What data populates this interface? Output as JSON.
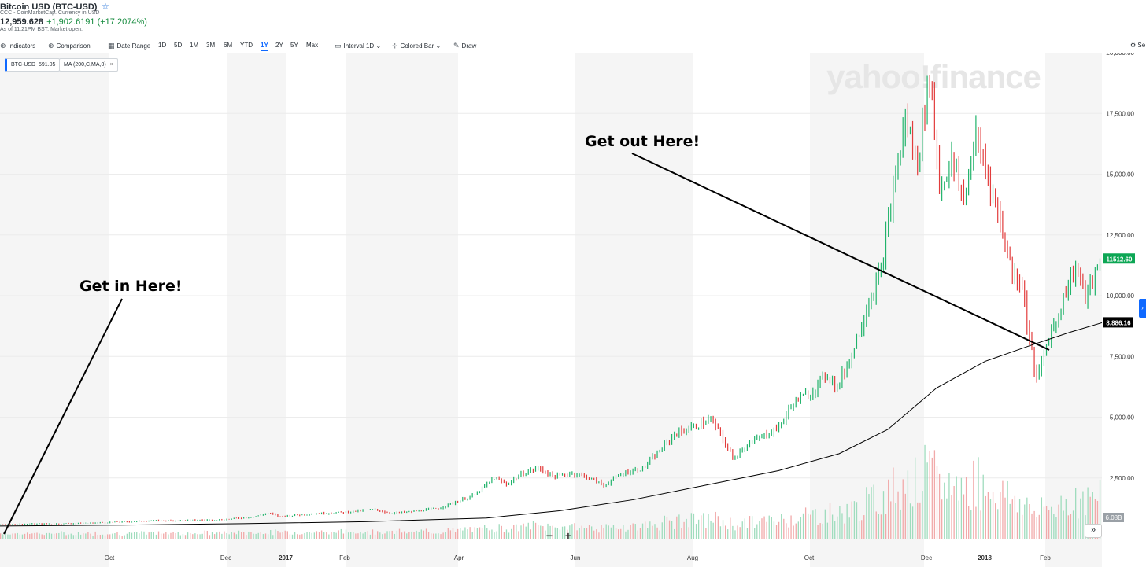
{
  "header": {
    "title": "Bitcoin USD (BTC-USD)",
    "source": "CCC - CoinMarketCap. Currency in USD",
    "price": "12,959.628",
    "change": "+1,902.6191 (+17.2074%)",
    "as_of": "As of 11:21PM BST. Market open."
  },
  "toolbar": {
    "indicators": "Indicators",
    "comparison": "Comparison",
    "date_range": "Date Range",
    "ranges": [
      "1D",
      "5D",
      "1M",
      "3M",
      "6M",
      "YTD",
      "1Y",
      "2Y",
      "5Y",
      "Max"
    ],
    "active_range": "1Y",
    "interval_label": "Interval",
    "interval_value": "1D",
    "chart_type": "Colored Bar",
    "draw": "Draw",
    "settings": "Se"
  },
  "chips": {
    "symbol": "BTC-USD",
    "symbol_value": "591.05",
    "ma": "MA (200,C,MA,0)"
  },
  "watermark": "yahoo!finance",
  "colors": {
    "up": "#21b36b",
    "down": "#e23c3c",
    "ma": "#000000",
    "accent": "#0f69ff",
    "grid": "#f3f3f3"
  },
  "chart_data": {
    "type": "line",
    "x_ticks": [
      "Oct",
      "Dec",
      "2017",
      "Feb",
      "Apr",
      "Jun",
      "Aug",
      "Oct",
      "Dec",
      "2018",
      "Feb"
    ],
    "y_ticks": [
      "2,500.00",
      "5,000.00",
      "7,500.00",
      "10,000.00",
      "12,500.00",
      "15,000.00",
      "17,500.00",
      "20,000.00"
    ],
    "ylim": [
      0,
      20000
    ],
    "price_series": {
      "name": "BTC-USD",
      "points": [
        [
          0,
          591
        ],
        [
          13,
          605
        ],
        [
          26,
          620
        ],
        [
          39,
          650
        ],
        [
          52,
          700
        ],
        [
          65,
          740
        ],
        [
          78,
          760
        ],
        [
          91,
          780
        ],
        [
          104,
          900
        ],
        [
          110,
          1050
        ],
        [
          115,
          920
        ],
        [
          128,
          1020
        ],
        [
          141,
          1090
        ],
        [
          154,
          1200
        ],
        [
          160,
          1050
        ],
        [
          168,
          1100
        ],
        [
          180,
          1250
        ],
        [
          195,
          1800
        ],
        [
          203,
          2500
        ],
        [
          208,
          2250
        ],
        [
          215,
          2700
        ],
        [
          221,
          2900
        ],
        [
          228,
          2550
        ],
        [
          235,
          2700
        ],
        [
          241,
          2550
        ],
        [
          248,
          2200
        ],
        [
          256,
          2700
        ],
        [
          264,
          2900
        ],
        [
          271,
          3600
        ],
        [
          277,
          4300
        ],
        [
          285,
          4600
        ],
        [
          292,
          4900
        ],
        [
          296,
          4300
        ],
        [
          301,
          3300
        ],
        [
          306,
          3800
        ],
        [
          313,
          4200
        ],
        [
          320,
          4600
        ],
        [
          326,
          5600
        ],
        [
          333,
          6000
        ],
        [
          340,
          6800
        ],
        [
          344,
          6200
        ],
        [
          350,
          7600
        ],
        [
          356,
          9500
        ],
        [
          362,
          11000
        ],
        [
          368,
          15000
        ],
        [
          372,
          17200
        ],
        [
          377,
          15500
        ],
        [
          382,
          19200
        ],
        [
          386,
          14500
        ],
        [
          391,
          15500
        ],
        [
          396,
          14000
        ],
        [
          401,
          16500
        ],
        [
          406,
          15000
        ],
        [
          411,
          13000
        ],
        [
          416,
          11000
        ],
        [
          420,
          10500
        ],
        [
          423,
          8200
        ],
        [
          426,
          6500
        ],
        [
          430,
          8000
        ],
        [
          434,
          9000
        ],
        [
          438,
          10200
        ],
        [
          442,
          11200
        ],
        [
          446,
          10000
        ],
        [
          450,
          10800
        ],
        [
          453,
          11512
        ]
      ]
    },
    "ma_series": {
      "name": "MA (200,C,MA,0)",
      "points": [
        [
          0,
          520
        ],
        [
          50,
          560
        ],
        [
          100,
          620
        ],
        [
          150,
          700
        ],
        [
          200,
          850
        ],
        [
          230,
          1150
        ],
        [
          260,
          1600
        ],
        [
          290,
          2200
        ],
        [
          320,
          2800
        ],
        [
          345,
          3500
        ],
        [
          365,
          4500
        ],
        [
          385,
          6200
        ],
        [
          405,
          7300
        ],
        [
          425,
          8000
        ],
        [
          440,
          8500
        ],
        [
          453,
          8886
        ]
      ]
    },
    "last_price_label": "11512.60",
    "ma_label": "8,886.16",
    "volume_label": "6.08B",
    "annotations": [
      "Get in Here!",
      "Get out Here!"
    ]
  }
}
